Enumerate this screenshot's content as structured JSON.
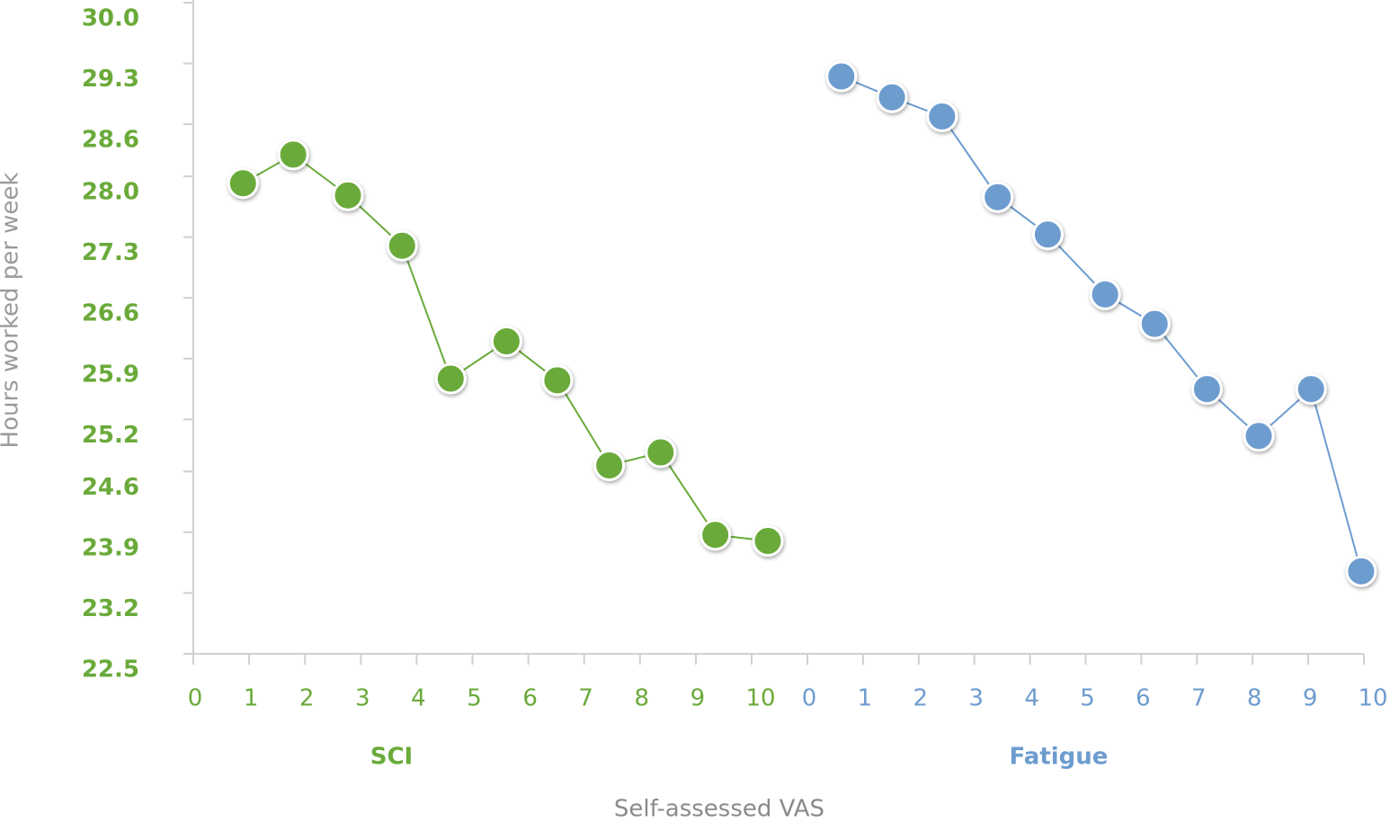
{
  "chart_data": {
    "type": "line",
    "y_label": "Hours worked per week",
    "x_label": "Self-assessed VAS",
    "ylim": [
      22.5,
      30.0
    ],
    "yticks": [
      22.5,
      23.2,
      23.9,
      24.6,
      25.2,
      25.9,
      26.6,
      27.3,
      {
        "value": 28,
        "label": "28.0"
      },
      28.6,
      29.3,
      {
        "value": 30,
        "label": "30.0"
      }
    ],
    "y_tick_color": "#6aaa3a",
    "series": [
      {
        "name": "SCI",
        "color": "#6aaa3a",
        "xlim": [
          0,
          10
        ],
        "xticks": [
          0,
          1,
          2,
          3,
          4,
          5,
          6,
          7,
          8,
          9,
          10
        ],
        "x": [
          0.89,
          1.79,
          2.77,
          3.74,
          4.61,
          5.61,
          6.52,
          7.45,
          8.37,
          9.35,
          10.29
        ],
        "values": [
          27.92,
          28.25,
          27.78,
          27.2,
          25.67,
          26.1,
          25.65,
          24.67,
          24.82,
          23.87,
          23.8
        ]
      },
      {
        "name": "Fatigue",
        "color": "#6d9ccf",
        "xlim": [
          0,
          10
        ],
        "xticks": [
          0,
          1,
          2,
          3,
          4,
          5,
          6,
          7,
          8,
          9,
          10
        ],
        "x": [
          0.61,
          1.52,
          2.42,
          3.42,
          4.32,
          5.35,
          6.24,
          7.18,
          8.11,
          9.05,
          9.95
        ],
        "values": [
          29.15,
          28.91,
          28.69,
          27.76,
          27.33,
          26.64,
          26.3,
          25.55,
          25.01,
          25.55,
          23.45
        ]
      }
    ]
  }
}
